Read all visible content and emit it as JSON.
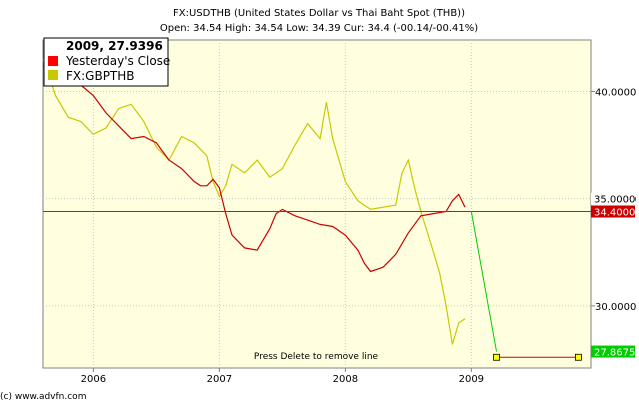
{
  "chart_data": {
    "type": "line",
    "title": "FX:USDTHB (United States Dollar vs Thai Baht Spot (THB))",
    "subtitle": "Open: 34.54 High: 34.54 Low: 34.39 Cur: 34.4 (-00.14/-00.41%)",
    "x_ticks": [
      "2006",
      "2007",
      "2008",
      "2009"
    ],
    "y_ticks": [
      "40.0000",
      "35.0000",
      "30.0000"
    ],
    "xlim": [
      2005.6,
      2009.95
    ],
    "ylim": [
      27.1,
      42.4
    ],
    "grid": true,
    "legend": {
      "placement": "top-left",
      "header": "2009, 27.9396",
      "items": [
        {
          "label": "Yesterday's Close",
          "color": "#ff0000"
        },
        {
          "label": "FX:GBPTHB",
          "color": "#c8c800"
        }
      ]
    },
    "series": [
      {
        "name": "FX:USDTHB",
        "color": "#cc0000",
        "x": [
          2005.6,
          2005.7,
          2005.8,
          2005.9,
          2006.0,
          2006.1,
          2006.2,
          2006.3,
          2006.4,
          2006.5,
          2006.6,
          2006.7,
          2006.8,
          2006.85,
          2006.9,
          2006.95,
          2007.0,
          2007.05,
          2007.1,
          2007.2,
          2007.3,
          2007.4,
          2007.45,
          2007.5,
          2007.6,
          2007.7,
          2007.8,
          2007.9,
          2008.0,
          2008.1,
          2008.15,
          2008.2,
          2008.3,
          2008.4,
          2008.5,
          2008.6,
          2008.7,
          2008.8,
          2008.85,
          2008.9,
          2008.95
        ],
        "values": [
          41.2,
          41.0,
          40.6,
          40.3,
          39.8,
          39.0,
          38.4,
          37.8,
          37.9,
          37.6,
          36.8,
          36.4,
          35.8,
          35.6,
          35.6,
          35.9,
          35.5,
          34.3,
          33.3,
          32.7,
          32.6,
          33.6,
          34.3,
          34.5,
          34.2,
          34.0,
          33.8,
          33.7,
          33.3,
          32.6,
          32.0,
          31.6,
          31.8,
          32.4,
          33.4,
          34.2,
          34.3,
          34.4,
          34.9,
          35.2,
          34.6
        ]
      },
      {
        "name": "FX:GBPTHB",
        "color": "#c8c800",
        "x": [
          2005.6,
          2005.7,
          2005.8,
          2005.9,
          2006.0,
          2006.1,
          2006.2,
          2006.3,
          2006.4,
          2006.5,
          2006.6,
          2006.7,
          2006.8,
          2006.9,
          2006.95,
          2007.0,
          2007.05,
          2007.1,
          2007.2,
          2007.3,
          2007.4,
          2007.5,
          2007.6,
          2007.7,
          2007.8,
          2007.85,
          2007.9,
          2008.0,
          2008.1,
          2008.2,
          2008.3,
          2008.4,
          2008.45,
          2008.5,
          2008.55,
          2008.6,
          2008.7,
          2008.75,
          2008.8,
          2008.85,
          2008.9,
          2008.95
        ],
        "values": [
          41.5,
          39.8,
          38.8,
          38.6,
          38.0,
          38.3,
          39.2,
          39.4,
          38.6,
          37.4,
          36.8,
          37.9,
          37.6,
          37.0,
          35.8,
          35.1,
          35.6,
          36.6,
          36.2,
          36.8,
          36.0,
          36.4,
          37.5,
          38.5,
          37.8,
          39.5,
          37.8,
          35.8,
          34.9,
          34.5,
          34.6,
          34.7,
          36.2,
          36.8,
          35.5,
          34.4,
          32.5,
          31.5,
          30.0,
          28.2,
          29.2,
          29.4
        ]
      },
      {
        "name": "Yesterday's Close",
        "color": "#ff0000",
        "x": [
          2005.6,
          2009.95
        ],
        "values": [
          34.4,
          34.4
        ]
      }
    ],
    "trendline": {
      "color": "#00cc00",
      "x": [
        2009.0,
        2009.2
      ],
      "values": [
        34.4,
        27.8675
      ]
    },
    "flatline": {
      "color": "#cc0000",
      "x": [
        2009.2,
        2009.85
      ],
      "values": [
        27.6,
        27.6
      ]
    },
    "tags": [
      {
        "label": "35.0000",
        "value": 35.0,
        "bg": "#ffffff",
        "fg": "#000000"
      },
      {
        "label": "34.4000",
        "value": 34.4,
        "bg": "#cc0000",
        "fg": "#ffffff"
      },
      {
        "label": "27.8675",
        "value": 27.8675,
        "bg": "#00cc00",
        "fg": "#ffffff"
      }
    ],
    "annotation": "Press Delete to remove line"
  },
  "footer": {
    "copyright": "(c) www.advfn.com"
  }
}
